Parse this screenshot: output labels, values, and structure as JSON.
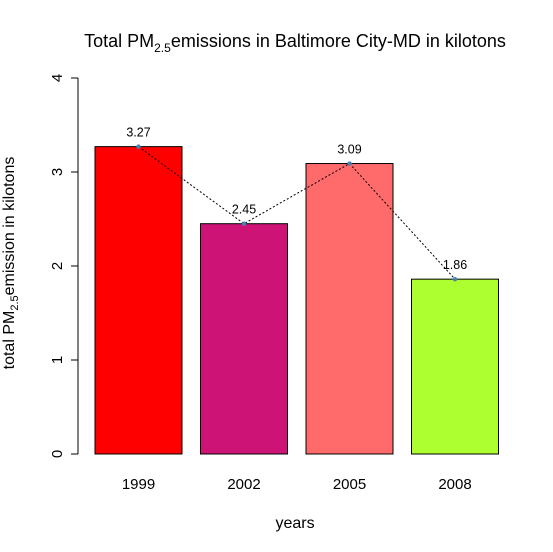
{
  "chart_data": {
    "type": "bar",
    "title": {
      "prefix": "Total PM",
      "subscript": "2.5",
      "suffix": "emissions in Baltimore City-MD in kilotons"
    },
    "xlabel": "years",
    "ylabel": {
      "prefix": "total PM",
      "subscript": "2.5",
      "suffix": "emission in kilotons"
    },
    "categories": [
      "1999",
      "2002",
      "2005",
      "2008"
    ],
    "values": [
      3.27,
      2.45,
      3.09,
      1.86
    ],
    "value_labels": [
      "3.27",
      "2.45",
      "3.09",
      "1.86"
    ],
    "bar_colors": [
      "#ff0000",
      "#cd1476",
      "#ff6a6a",
      "#adff2f"
    ],
    "ylim": [
      0,
      4
    ],
    "yticks": [
      0,
      1,
      2,
      3,
      4
    ],
    "ytick_labels": [
      "0",
      "1",
      "2",
      "3",
      "4"
    ],
    "overlay_line": {
      "style": "dotted",
      "color": "#000000",
      "point_color": "#4682b4"
    },
    "grid": false,
    "legend": "none"
  }
}
